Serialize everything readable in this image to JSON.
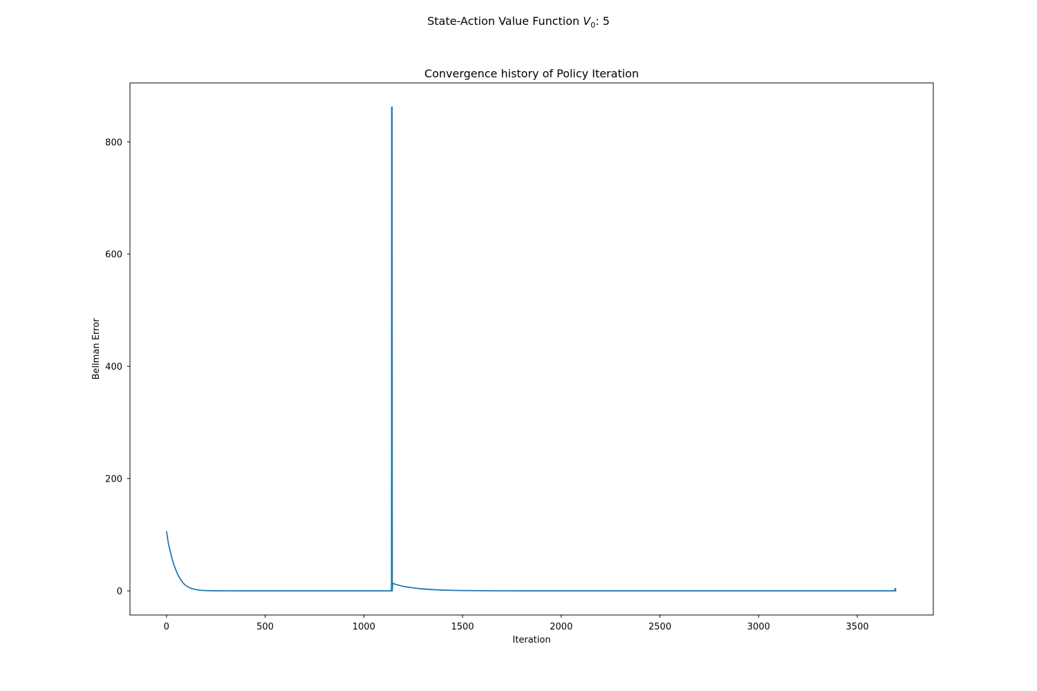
{
  "figure": {
    "suptitle_prefix": "State-Action Value Function ",
    "suptitle_var": "V",
    "suptitle_sub": "0",
    "suptitle_suffix": ": 5"
  },
  "chart_data": {
    "type": "line",
    "title": "Convergence history of Policy Iteration",
    "xlabel": "Iteration",
    "ylabel": "Bellman Error",
    "xlim": [
      -185,
      3885
    ],
    "ylim": [
      -43,
      905
    ],
    "xticks": [
      0,
      500,
      1000,
      1500,
      2000,
      2500,
      3000,
      3500
    ],
    "yticks": [
      0,
      200,
      400,
      600,
      800
    ],
    "grid": false,
    "legend": "none",
    "series": [
      {
        "color": "#1f77b4",
        "x": [
          0,
          10,
          20,
          30,
          40,
          50,
          60,
          70,
          80,
          90,
          100,
          120,
          140,
          160,
          180,
          200,
          250,
          300,
          400,
          600,
          800,
          1000,
          1140,
          1141,
          1143,
          1144,
          1146,
          1150,
          1170,
          1200,
          1250,
          1300,
          1350,
          1400,
          1450,
          1500,
          1600,
          1700,
          1800,
          2000,
          2500,
          3000,
          3500,
          3690,
          3691,
          3692,
          3693,
          3695,
          3697
        ],
        "y": [
          106,
          84,
          69,
          55,
          44,
          35,
          27,
          21,
          16,
          12,
          9,
          5,
          3,
          1.6,
          0.9,
          0.5,
          0.15,
          0.05,
          0,
          0,
          0,
          0,
          0,
          862,
          862,
          0,
          14,
          13,
          10.5,
          8,
          5.2,
          3.4,
          2.2,
          1.4,
          0.9,
          0.6,
          0.25,
          0.1,
          0.04,
          0,
          0,
          0,
          0,
          0,
          4,
          1,
          4,
          0,
          0
        ]
      }
    ]
  }
}
